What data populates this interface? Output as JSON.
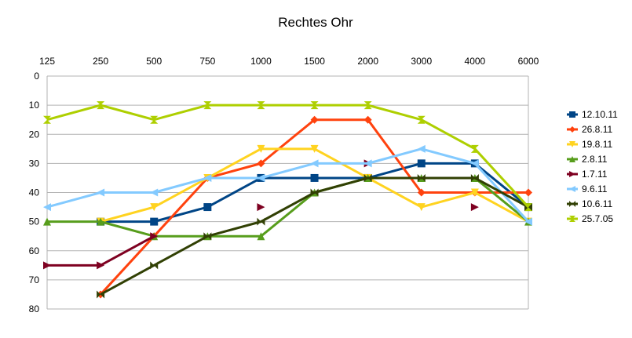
{
  "chart_data": {
    "type": "line",
    "title": "Rechtes Ohr",
    "categories": [
      "125",
      "250",
      "500",
      "750",
      "1000",
      "1500",
      "2000",
      "3000",
      "4000",
      "6000"
    ],
    "ylim": [
      0,
      80
    ],
    "y_inverted": true,
    "y_ticks": [
      "0",
      "10",
      "20",
      "30",
      "40",
      "50",
      "60",
      "70",
      "80"
    ],
    "x_axis_position": "top",
    "grid": true,
    "legend_position": "right",
    "series": [
      {
        "name": "12.10.11",
        "color": "#004586",
        "marker": "square",
        "values": [
          null,
          50,
          50,
          45,
          35,
          35,
          35,
          30,
          30,
          45
        ]
      },
      {
        "name": "26.8.11",
        "color": "#ff420e",
        "marker": "diamond",
        "values": [
          null,
          75,
          55,
          35,
          30,
          15,
          15,
          40,
          40,
          40
        ]
      },
      {
        "name": "19.8.11",
        "color": "#ffd320",
        "marker": "tri-down",
        "values": [
          null,
          50,
          45,
          35,
          25,
          25,
          35,
          45,
          40,
          50
        ]
      },
      {
        "name": "2.8.11",
        "color": "#579d1c",
        "marker": "tri-up",
        "values": [
          50,
          50,
          55,
          55,
          55,
          40,
          35,
          35,
          35,
          50
        ]
      },
      {
        "name": "1.7.11",
        "color": "#7e0021",
        "marker": "tri-right",
        "values": [
          65,
          65,
          55,
          null,
          45,
          null,
          30,
          null,
          45,
          null
        ]
      },
      {
        "name": "9.6.11",
        "color": "#83caff",
        "marker": "tri-left",
        "values": [
          45,
          40,
          40,
          35,
          35,
          30,
          30,
          25,
          30,
          50
        ]
      },
      {
        "name": "10.6.11",
        "color": "#314004",
        "marker": "bowtie",
        "values": [
          null,
          75,
          65,
          55,
          50,
          40,
          35,
          35,
          35,
          45
        ]
      },
      {
        "name": "25.7.05",
        "color": "#aecf00",
        "marker": "hourglass",
        "values": [
          15,
          10,
          15,
          10,
          10,
          10,
          10,
          15,
          25,
          45
        ]
      }
    ]
  }
}
